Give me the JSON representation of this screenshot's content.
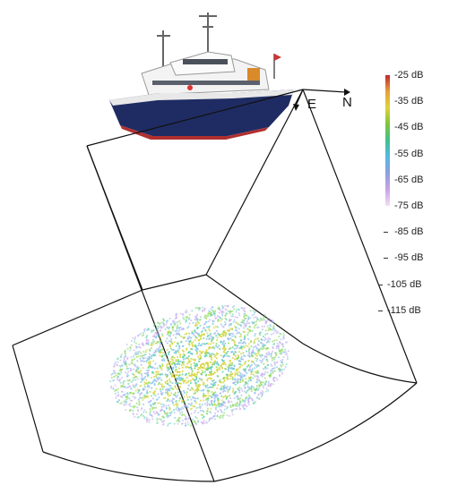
{
  "axes": {
    "east_label": "E",
    "north_label": "N"
  },
  "colorbar": {
    "ticks": [
      "-25 dB",
      "-35 dB",
      "-45 dB",
      "-55 dB",
      "-65 dB",
      "-75 dB",
      "-85 dB",
      "-95 dB",
      "-105 dB",
      "-115 dB"
    ],
    "gradient_colors": [
      "#c0282e",
      "#e8a13a",
      "#ddd33a",
      "#7dc63c",
      "#3fc28e",
      "#55b9e6",
      "#8d9fdc",
      "#c9a3e6",
      "#efe0f5"
    ],
    "scatter_colors": [
      "#c9a3e6",
      "#a6b4ee",
      "#79c3e8",
      "#5fcfa6",
      "#8ad44e",
      "#d6d43e"
    ]
  },
  "ship": {
    "hull_color": "#1f2c63",
    "deck_color": "#f0f0f0"
  }
}
